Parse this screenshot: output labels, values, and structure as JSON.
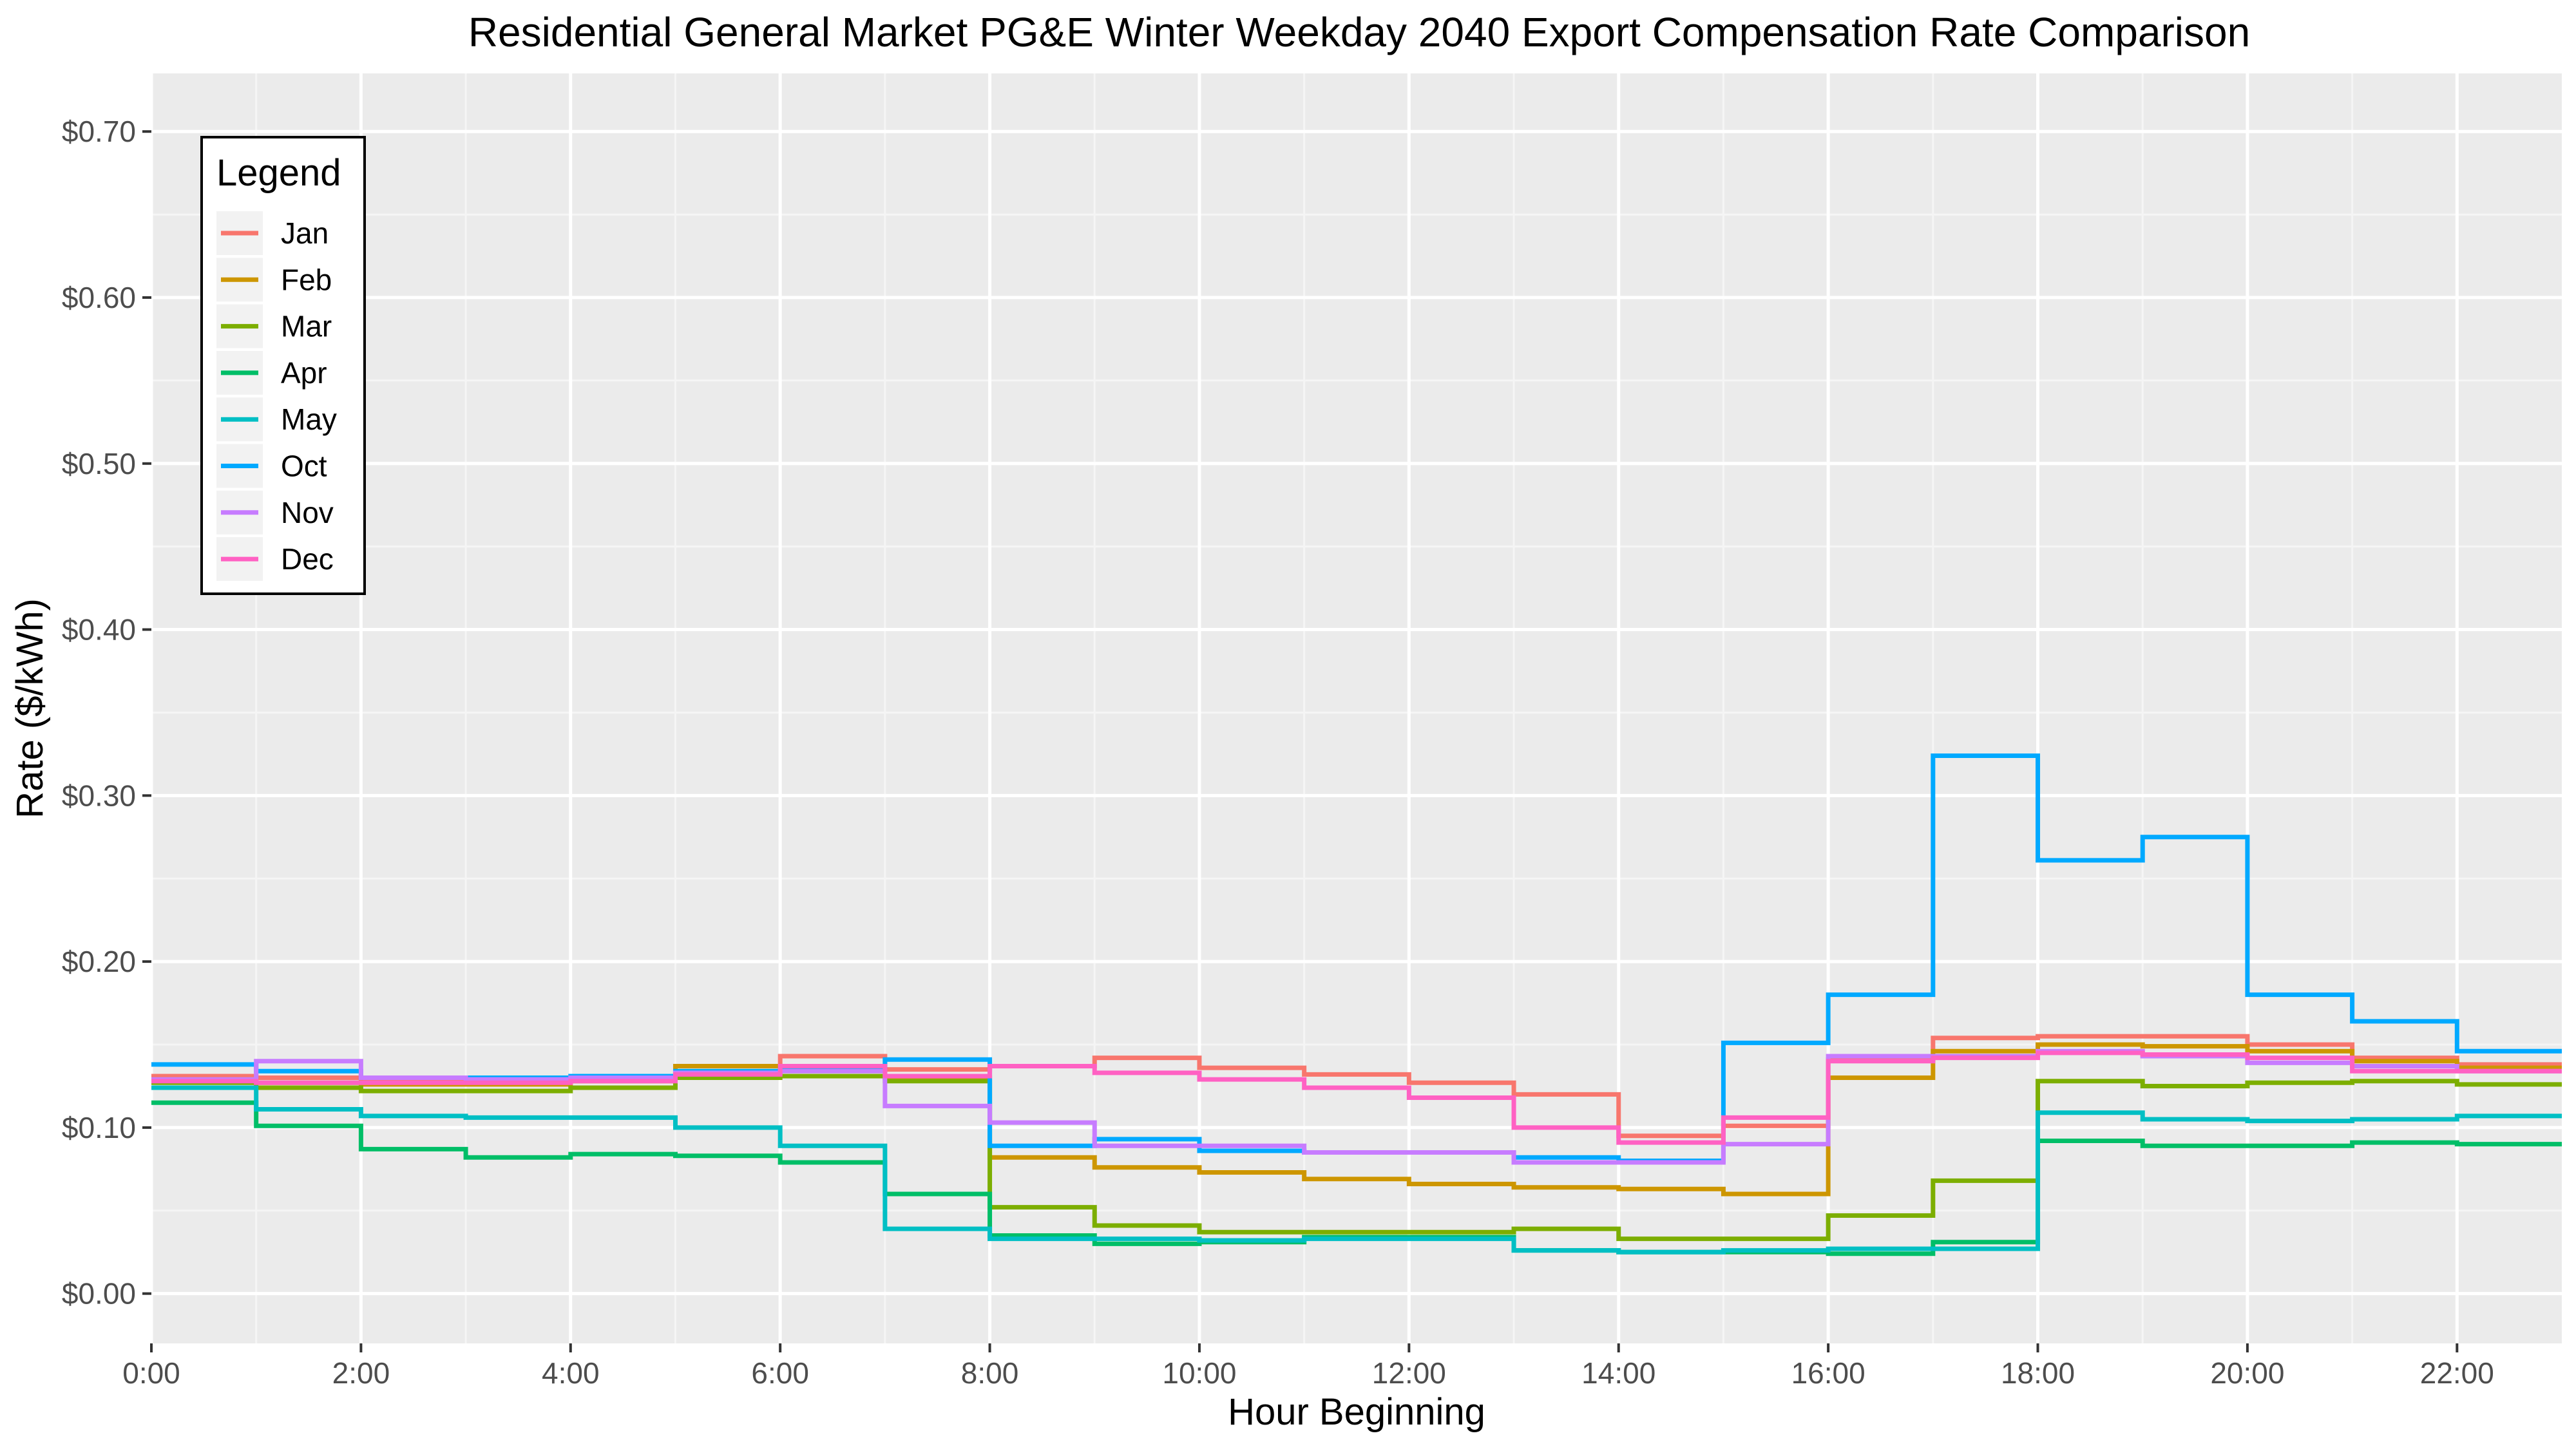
{
  "chart_data": {
    "type": "line",
    "step": true,
    "title": "Residential General Market PG&E Winter Weekday 2040 Export Compensation Rate Comparison",
    "xlabel": "Hour Beginning",
    "ylabel": "Rate ($/kWh)",
    "xlim": [
      0,
      23
    ],
    "ylim": [
      -0.03,
      0.735
    ],
    "x": [
      0,
      1,
      2,
      3,
      4,
      5,
      6,
      7,
      8,
      9,
      10,
      11,
      12,
      13,
      14,
      15,
      16,
      17,
      18,
      19,
      20,
      21,
      22,
      23
    ],
    "x_ticks": [
      0,
      2,
      4,
      6,
      8,
      10,
      12,
      14,
      16,
      18,
      20,
      22
    ],
    "x_tick_labels": [
      "0:00",
      "2:00",
      "4:00",
      "6:00",
      "8:00",
      "10:00",
      "12:00",
      "14:00",
      "16:00",
      "18:00",
      "20:00",
      "22:00"
    ],
    "y_ticks": [
      0,
      0.1,
      0.2,
      0.3,
      0.4,
      0.5,
      0.6,
      0.7
    ],
    "y_tick_labels": [
      "$0.00",
      "$0.10",
      "$0.20",
      "$0.30",
      "$0.40",
      "$0.50",
      "$0.60",
      "$0.70"
    ],
    "grid": true,
    "legend": {
      "title": "Legend",
      "position": "top-left"
    },
    "panel_background": "#ebebeb",
    "series": [
      {
        "name": "Jan",
        "color": "#F8766D",
        "values": [
          0.131,
          0.13,
          0.129,
          0.129,
          0.13,
          0.133,
          0.143,
          0.135,
          0.137,
          0.142,
          0.136,
          0.132,
          0.127,
          0.12,
          0.095,
          0.101,
          0.141,
          0.154,
          0.155,
          0.155,
          0.15,
          0.142,
          0.138,
          0.138
        ]
      },
      {
        "name": "Feb",
        "color": "#CD9600",
        "values": [
          0.129,
          0.127,
          0.126,
          0.126,
          0.128,
          0.137,
          0.131,
          0.13,
          0.082,
          0.076,
          0.073,
          0.069,
          0.066,
          0.064,
          0.063,
          0.06,
          0.13,
          0.146,
          0.15,
          0.149,
          0.146,
          0.14,
          0.136,
          0.136
        ]
      },
      {
        "name": "Mar",
        "color": "#7CAE00",
        "values": [
          0.127,
          0.124,
          0.122,
          0.122,
          0.124,
          0.13,
          0.131,
          0.128,
          0.052,
          0.041,
          0.037,
          0.037,
          0.037,
          0.039,
          0.033,
          0.033,
          0.047,
          0.068,
          0.128,
          0.125,
          0.127,
          0.128,
          0.126,
          0.126
        ]
      },
      {
        "name": "Apr",
        "color": "#00BE67",
        "values": [
          0.115,
          0.101,
          0.087,
          0.082,
          0.084,
          0.083,
          0.079,
          0.06,
          0.035,
          0.03,
          0.031,
          0.034,
          0.034,
          0.026,
          0.025,
          0.025,
          0.024,
          0.031,
          0.092,
          0.089,
          0.089,
          0.091,
          0.09,
          0.09
        ]
      },
      {
        "name": "May",
        "color": "#00BFC4",
        "values": [
          0.124,
          0.111,
          0.107,
          0.106,
          0.106,
          0.1,
          0.089,
          0.039,
          0.033,
          0.033,
          0.032,
          0.033,
          0.033,
          0.026,
          0.025,
          0.026,
          0.027,
          0.027,
          0.109,
          0.105,
          0.104,
          0.105,
          0.107,
          0.107
        ]
      },
      {
        "name": "Oct",
        "color": "#00A9FF",
        "values": [
          0.138,
          0.134,
          0.13,
          0.13,
          0.131,
          0.134,
          0.136,
          0.141,
          0.089,
          0.093,
          0.086,
          0.085,
          0.085,
          0.082,
          0.08,
          0.151,
          0.18,
          0.324,
          0.261,
          0.275,
          0.18,
          0.164,
          0.146,
          0.146
        ]
      },
      {
        "name": "Nov",
        "color": "#C77CFF",
        "values": [
          0.129,
          0.14,
          0.13,
          0.129,
          0.13,
          0.133,
          0.134,
          0.113,
          0.103,
          0.089,
          0.089,
          0.085,
          0.085,
          0.079,
          0.079,
          0.09,
          0.143,
          0.143,
          0.146,
          0.143,
          0.139,
          0.137,
          0.134,
          0.134
        ]
      },
      {
        "name": "Dec",
        "color": "#FF61C3",
        "values": [
          0.128,
          0.127,
          0.127,
          0.127,
          0.128,
          0.132,
          0.137,
          0.131,
          0.137,
          0.133,
          0.129,
          0.124,
          0.118,
          0.1,
          0.091,
          0.106,
          0.14,
          0.142,
          0.145,
          0.144,
          0.142,
          0.134,
          0.134,
          0.134
        ]
      }
    ]
  }
}
